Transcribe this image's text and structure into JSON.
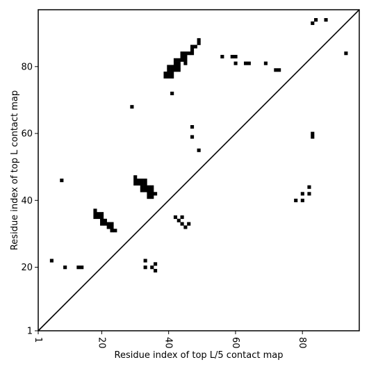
{
  "chart_data": {
    "type": "heatmap",
    "xlabel": "Residue index of top L/5 contact map",
    "ylabel": "Residue index of top L contact map",
    "xlim": [
      1,
      97
    ],
    "ylim": [
      1,
      97
    ],
    "xticks": [
      1,
      20,
      40,
      60,
      80
    ],
    "yticks": [
      1,
      20,
      40,
      60,
      80
    ],
    "x_tick_labels": [
      "1",
      "20",
      "40",
      "60",
      "80"
    ],
    "y_tick_labels": [
      "1",
      "20",
      "40",
      "60",
      "80"
    ],
    "grid": false,
    "diagonal_line": true,
    "cell_color": "#000000",
    "contacts_below_diagonal": [
      [
        5,
        22
      ],
      [
        9,
        20
      ],
      [
        13,
        20
      ],
      [
        14,
        20
      ],
      [
        18,
        35
      ],
      [
        18,
        36
      ],
      [
        18,
        37
      ],
      [
        19,
        35
      ],
      [
        19,
        36
      ],
      [
        20,
        33
      ],
      [
        20,
        34
      ],
      [
        20,
        35
      ],
      [
        20,
        36
      ],
      [
        21,
        33
      ],
      [
        21,
        34
      ],
      [
        22,
        32
      ],
      [
        22,
        33
      ],
      [
        23,
        31
      ],
      [
        23,
        32
      ],
      [
        23,
        33
      ],
      [
        24,
        31
      ],
      [
        30,
        45
      ],
      [
        30,
        46
      ],
      [
        30,
        47
      ],
      [
        31,
        45
      ],
      [
        31,
        46
      ],
      [
        32,
        43
      ],
      [
        32,
        44
      ],
      [
        32,
        45
      ],
      [
        32,
        46
      ],
      [
        33,
        43
      ],
      [
        33,
        44
      ],
      [
        33,
        45
      ],
      [
        33,
        46
      ],
      [
        34,
        41
      ],
      [
        34,
        42
      ],
      [
        34,
        43
      ],
      [
        34,
        44
      ],
      [
        35,
        41
      ],
      [
        35,
        42
      ],
      [
        35,
        43
      ],
      [
        35,
        44
      ],
      [
        36,
        42
      ],
      [
        33,
        20
      ],
      [
        33,
        22
      ],
      [
        35,
        20
      ],
      [
        36,
        19
      ],
      [
        36,
        21
      ],
      [
        42,
        35
      ],
      [
        43,
        34
      ],
      [
        44,
        33
      ],
      [
        44,
        35
      ],
      [
        45,
        32
      ],
      [
        46,
        33
      ],
      [
        78,
        40
      ],
      [
        80,
        40
      ],
      [
        80,
        42
      ],
      [
        82,
        42
      ],
      [
        82,
        44
      ],
      [
        83,
        59
      ],
      [
        83,
        60
      ]
    ],
    "contacts_above_diagonal": [
      [
        8,
        46
      ],
      [
        29,
        68
      ],
      [
        41,
        72
      ],
      [
        47,
        59
      ],
      [
        47,
        62
      ],
      [
        49,
        55
      ],
      [
        39,
        77
      ],
      [
        39,
        78
      ],
      [
        40,
        77
      ],
      [
        40,
        78
      ],
      [
        40,
        79
      ],
      [
        40,
        80
      ],
      [
        41,
        77
      ],
      [
        41,
        78
      ],
      [
        41,
        79
      ],
      [
        41,
        80
      ],
      [
        42,
        79
      ],
      [
        42,
        80
      ],
      [
        42,
        81
      ],
      [
        42,
        82
      ],
      [
        43,
        79
      ],
      [
        43,
        80
      ],
      [
        43,
        81
      ],
      [
        43,
        82
      ],
      [
        44,
        82
      ],
      [
        44,
        83
      ],
      [
        44,
        84
      ],
      [
        45,
        81
      ],
      [
        45,
        82
      ],
      [
        45,
        83
      ],
      [
        45,
        84
      ],
      [
        46,
        84
      ],
      [
        47,
        84
      ],
      [
        47,
        85
      ],
      [
        47,
        86
      ],
      [
        48,
        86
      ],
      [
        49,
        87
      ],
      [
        49,
        88
      ],
      [
        56,
        83
      ],
      [
        59,
        83
      ],
      [
        60,
        81
      ],
      [
        60,
        83
      ],
      [
        63,
        81
      ],
      [
        64,
        81
      ],
      [
        69,
        81
      ],
      [
        72,
        79
      ],
      [
        73,
        79
      ],
      [
        83,
        93
      ],
      [
        84,
        94
      ],
      [
        87,
        94
      ],
      [
        93,
        84
      ]
    ]
  }
}
